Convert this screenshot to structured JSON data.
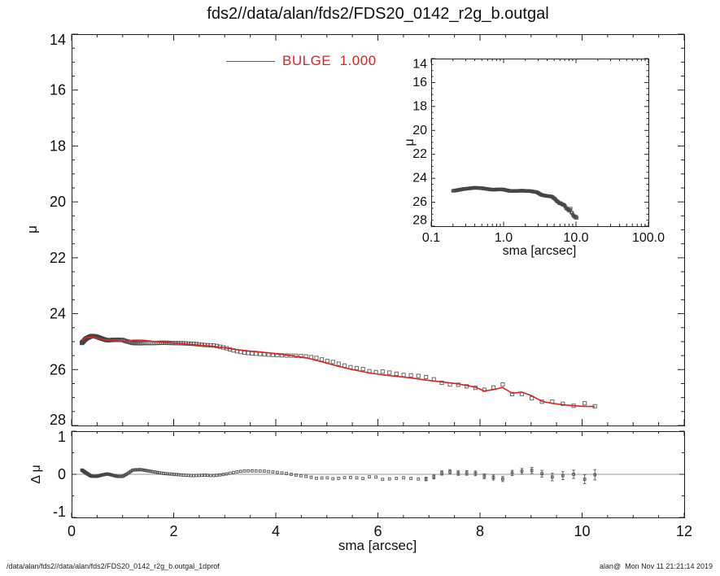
{
  "title": "fds2//data/alan/fds2/FDS20_0142_r2g_b.outgal",
  "legend": {
    "label": "BULGE  1.000"
  },
  "footer": {
    "left": "/data/alan/fds2//data/alan/fds2/FDS20_0142_r2g_b.outgal_1dprof",
    "right": "alan@  Mon Nov 11 21:21:14 2019"
  },
  "colors": {
    "model": "#dd2222",
    "data": "#444444",
    "frame": "#222222",
    "zero_line": "#999999",
    "text": "#111111"
  },
  "chart_data": {
    "type": "line",
    "description": "Galaxy 1D surface brightness profile (mag/arcsec^2) vs semi-major axis, with red BULGE model fit, log-x inset, and residual panel",
    "series": [
      {
        "name": "observed profile",
        "style": "open-square markers",
        "color": "#444444"
      },
      {
        "name": "BULGE 1.000",
        "style": "solid line",
        "color": "#dd2222"
      }
    ],
    "profile": {
      "sampling": {
        "start": 0.2,
        "end": 10.25,
        "log_step_ratio": 1.022,
        "note": "markers log-spaced in sma; values interpolated from anchors below"
      },
      "model_anchors": [
        [
          0.2,
          24.95
        ],
        [
          0.28,
          24.86
        ],
        [
          0.4,
          24.84
        ],
        [
          0.52,
          24.88
        ],
        [
          0.65,
          24.93
        ],
        [
          0.8,
          24.96
        ],
        [
          0.95,
          24.99
        ],
        [
          1.05,
          24.99
        ],
        [
          1.2,
          24.95
        ],
        [
          1.4,
          24.95
        ],
        [
          1.6,
          24.99
        ],
        [
          1.8,
          25.02
        ],
        [
          2.0,
          25.05
        ],
        [
          2.2,
          25.08
        ],
        [
          2.4,
          25.11
        ],
        [
          2.6,
          25.14
        ],
        [
          2.8,
          25.17
        ],
        [
          3.0,
          25.22
        ],
        [
          3.2,
          25.28
        ],
        [
          3.4,
          25.32
        ],
        [
          3.7,
          25.37
        ],
        [
          4.0,
          25.43
        ],
        [
          4.3,
          25.5
        ],
        [
          4.6,
          25.58
        ],
        [
          4.9,
          25.72
        ],
        [
          5.2,
          25.87
        ],
        [
          5.5,
          26.0
        ],
        [
          5.8,
          26.11
        ],
        [
          6.1,
          26.19
        ],
        [
          6.4,
          26.25
        ],
        [
          6.7,
          26.31
        ],
        [
          7.0,
          26.39
        ],
        [
          7.3,
          26.45
        ],
        [
          7.6,
          26.52
        ],
        [
          7.9,
          26.62
        ],
        [
          8.1,
          26.78
        ],
        [
          8.3,
          26.7
        ],
        [
          8.5,
          26.62
        ],
        [
          8.68,
          26.93
        ],
        [
          8.87,
          26.76
        ],
        [
          9.05,
          26.98
        ],
        [
          9.25,
          27.17
        ],
        [
          9.5,
          27.23
        ],
        [
          9.8,
          27.29
        ],
        [
          10.05,
          27.32
        ],
        [
          10.25,
          27.32
        ]
      ],
      "residual_anchors": [
        [
          0.2,
          0.1
        ],
        [
          0.3,
          0.02
        ],
        [
          0.38,
          -0.04
        ],
        [
          0.48,
          -0.05
        ],
        [
          0.58,
          -0.02
        ],
        [
          0.7,
          0.01
        ],
        [
          0.8,
          -0.02
        ],
        [
          0.9,
          -0.05
        ],
        [
          1.0,
          -0.05
        ],
        [
          1.1,
          0.02
        ],
        [
          1.2,
          0.1
        ],
        [
          1.35,
          0.11
        ],
        [
          1.5,
          0.08
        ],
        [
          1.65,
          0.05
        ],
        [
          1.8,
          0.02
        ],
        [
          2.0,
          0.0
        ],
        [
          2.2,
          -0.02
        ],
        [
          2.4,
          -0.03
        ],
        [
          2.6,
          -0.02
        ],
        [
          2.8,
          -0.03
        ],
        [
          3.0,
          0.0
        ],
        [
          3.2,
          0.05
        ],
        [
          3.4,
          0.08
        ],
        [
          3.6,
          0.08
        ],
        [
          3.8,
          0.07
        ],
        [
          4.0,
          0.05
        ],
        [
          4.2,
          0.02
        ],
        [
          4.4,
          -0.02
        ],
        [
          4.6,
          -0.05
        ],
        [
          4.8,
          -0.09
        ],
        [
          5.0,
          -0.08
        ],
        [
          5.15,
          -0.11
        ],
        [
          5.3,
          -0.08
        ],
        [
          5.5,
          -0.07
        ],
        [
          5.7,
          -0.1
        ],
        [
          5.9,
          -0.04
        ],
        [
          6.1,
          -0.12
        ],
        [
          6.3,
          -0.1
        ],
        [
          6.5,
          -0.08
        ],
        [
          6.7,
          -0.1
        ],
        [
          6.9,
          -0.12
        ],
        [
          7.1,
          -0.06
        ],
        [
          7.25,
          0.03
        ],
        [
          7.4,
          0.06
        ],
        [
          7.55,
          0.03
        ],
        [
          7.7,
          0.02
        ],
        [
          7.85,
          0.06
        ],
        [
          8.0,
          -0.03
        ],
        [
          8.15,
          -0.06
        ],
        [
          8.3,
          -0.08
        ],
        [
          8.45,
          -0.11
        ],
        [
          8.6,
          0.02
        ],
        [
          8.75,
          0.08
        ],
        [
          8.9,
          0.06
        ],
        [
          9.05,
          0.1
        ],
        [
          9.2,
          0.02
        ],
        [
          9.35,
          -0.05
        ],
        [
          9.5,
          -0.08
        ],
        [
          9.65,
          -0.02
        ],
        [
          9.8,
          0.01
        ],
        [
          9.95,
          -0.03
        ],
        [
          10.08,
          -0.14
        ],
        [
          10.22,
          -0.01
        ]
      ],
      "error_anchors": [
        [
          0.2,
          0.01
        ],
        [
          3.0,
          0.015
        ],
        [
          5.0,
          0.02
        ],
        [
          6.5,
          0.03
        ],
        [
          7.2,
          0.05
        ],
        [
          8.0,
          0.055
        ],
        [
          8.6,
          0.06
        ],
        [
          9.0,
          0.07
        ],
        [
          9.5,
          0.09
        ],
        [
          10.0,
          0.1
        ],
        [
          10.25,
          0.12
        ]
      ]
    },
    "main_plot": {
      "ylabel": "μ",
      "xlim": [
        0,
        12
      ],
      "ylim": [
        14,
        28
      ],
      "xticks": {
        "values": [
          0,
          2,
          4,
          6,
          8,
          10,
          12
        ],
        "labels": [
          "0",
          "2",
          "4",
          "6",
          "8",
          "10",
          "12"
        ]
      },
      "yticks": {
        "values": [
          14,
          16,
          18,
          20,
          22,
          24,
          26,
          28
        ],
        "labels": [
          "14",
          "16",
          "18",
          "20",
          "22",
          "24",
          "26",
          "28"
        ]
      },
      "x_minor_step": 0.5,
      "y_minor_step": 0.5
    },
    "residual_plot": {
      "ylabel": "Δ μ",
      "xlabel": "sma [arcsec]",
      "xlim": [
        0,
        12
      ],
      "ylim": [
        1,
        -1
      ],
      "yticks": {
        "values": [
          1,
          0,
          -1
        ],
        "labels": [
          "1",
          "0",
          "-1"
        ]
      },
      "x_minor_step": 0.5,
      "y_minor_step": 0.5,
      "zero_line": true
    },
    "inset_plot": {
      "ylabel": "μ",
      "xlabel": "sma [arcsec]",
      "xscale": "log",
      "xlim": [
        0.1,
        100
      ],
      "ylim": [
        14,
        28
      ],
      "xticks": {
        "values": [
          0.1,
          1,
          10,
          100
        ],
        "labels": [
          "0.1",
          "1.0",
          "10.0",
          "100.0"
        ]
      },
      "yticks": {
        "values": [
          14,
          16,
          18,
          20,
          22,
          24,
          26,
          28
        ],
        "labels": [
          "14",
          "16",
          "18",
          "20",
          "22",
          "24",
          "26",
          "28"
        ]
      },
      "y_minor_step": 0.5
    }
  }
}
